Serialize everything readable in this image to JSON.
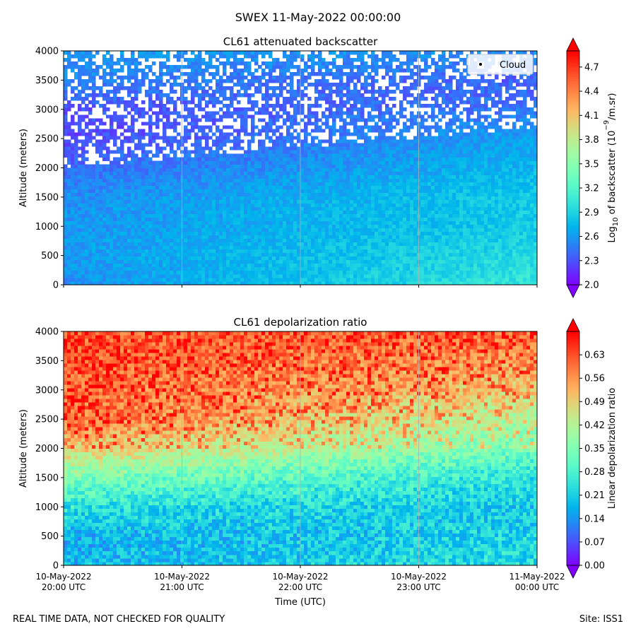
{
  "figure": {
    "suptitle": "SWEX 11-May-2022 00:00:00",
    "footer_left": "REAL TIME DATA, NOT CHECKED FOR QUALITY",
    "footer_right": "Site: ISS1",
    "xlabel": "Time (UTC)"
  },
  "chart_data": [
    {
      "type": "heatmap",
      "title": "CL61 attenuated backscatter",
      "xlabel": "",
      "ylabel": "Altitude (meters)",
      "ylim": [
        0,
        4000
      ],
      "yticks": [
        0,
        500,
        1000,
        1500,
        2000,
        2500,
        3000,
        3500,
        4000
      ],
      "x_range_hours_utc": [
        20,
        24
      ],
      "xticks_hours": [
        20,
        21,
        22,
        23,
        24
      ],
      "xtick_labels": [],
      "grid": "vertical",
      "colorbar": {
        "label_prefix": "Log",
        "label_sub": "10",
        "label_mid": " of backscatter (10",
        "label_sup": "−9",
        "label_suffix": "/m.sr)",
        "cmap": "rainbow",
        "vmin": 2.0,
        "vmax": 4.9,
        "ticks": [
          "2.0",
          "2.3",
          "2.6",
          "2.9",
          "3.2",
          "3.5",
          "3.8",
          "4.1",
          "4.4",
          "4.7"
        ],
        "tick_values": [
          2.0,
          2.3,
          2.6,
          2.9,
          3.2,
          3.5,
          3.8,
          4.1,
          4.4,
          4.7
        ],
        "extend": "both"
      },
      "legend": {
        "label": "Cloud",
        "position": "top-right"
      },
      "profile_description": "values decrease with altitude; weak/noisy returns above ~2000 m early, boundary layer rising to ~2800 m by 00 UTC",
      "profile_early": {
        "altitude": [
          0,
          500,
          1000,
          1500,
          2000,
          2500,
          3000,
          3500,
          4000
        ],
        "value": [
          2.55,
          2.6,
          2.58,
          2.55,
          2.4,
          2.25,
          2.3,
          2.5,
          2.6
        ]
      },
      "profile_late": {
        "altitude": [
          0,
          500,
          1000,
          1500,
          2000,
          2500,
          3000,
          3500,
          4000
        ],
        "value": [
          3.05,
          2.95,
          2.85,
          2.85,
          2.75,
          2.65,
          2.45,
          2.35,
          2.55
        ]
      }
    },
    {
      "type": "heatmap",
      "title": "CL61 depolarization ratio",
      "xlabel": "Time (UTC)",
      "ylabel": "Altitude (meters)",
      "ylim": [
        0,
        4000
      ],
      "yticks": [
        0,
        500,
        1000,
        1500,
        2000,
        2500,
        3000,
        3500,
        4000
      ],
      "x_range_hours_utc": [
        20,
        24
      ],
      "xticks_hours": [
        20,
        21,
        22,
        23,
        24
      ],
      "xtick_labels": [
        [
          "10-May-2022",
          "20:00 UTC"
        ],
        [
          "10-May-2022",
          "21:00 UTC"
        ],
        [
          "10-May-2022",
          "22:00 UTC"
        ],
        [
          "10-May-2022",
          "23:00 UTC"
        ],
        [
          "11-May-2022",
          "00:00 UTC"
        ]
      ],
      "grid": "vertical",
      "colorbar": {
        "label": "Linear depolarization ratio",
        "cmap": "rainbow",
        "vmin": 0.0,
        "vmax": 0.7,
        "ticks": [
          "0.00",
          "0.07",
          "0.14",
          "0.21",
          "0.28",
          "0.35",
          "0.42",
          "0.49",
          "0.56",
          "0.63"
        ],
        "tick_values": [
          0.0,
          0.07,
          0.14,
          0.21,
          0.28,
          0.35,
          0.42,
          0.49,
          0.56,
          0.63
        ],
        "extend": "both"
      },
      "profile_description": "low ratio (~0.15-0.25) near surface, increasing with altitude to >0.6 above ~2500 m",
      "profile_early": {
        "altitude": [
          0,
          500,
          1000,
          1500,
          2000,
          2500,
          3000,
          3500,
          4000
        ],
        "value": [
          0.18,
          0.17,
          0.24,
          0.35,
          0.5,
          0.6,
          0.6,
          0.62,
          0.62
        ]
      },
      "profile_late": {
        "altitude": [
          0,
          500,
          1000,
          1500,
          2000,
          2500,
          3000,
          3500,
          4000
        ],
        "value": [
          0.24,
          0.22,
          0.2,
          0.24,
          0.34,
          0.4,
          0.5,
          0.55,
          0.6
        ]
      }
    }
  ]
}
